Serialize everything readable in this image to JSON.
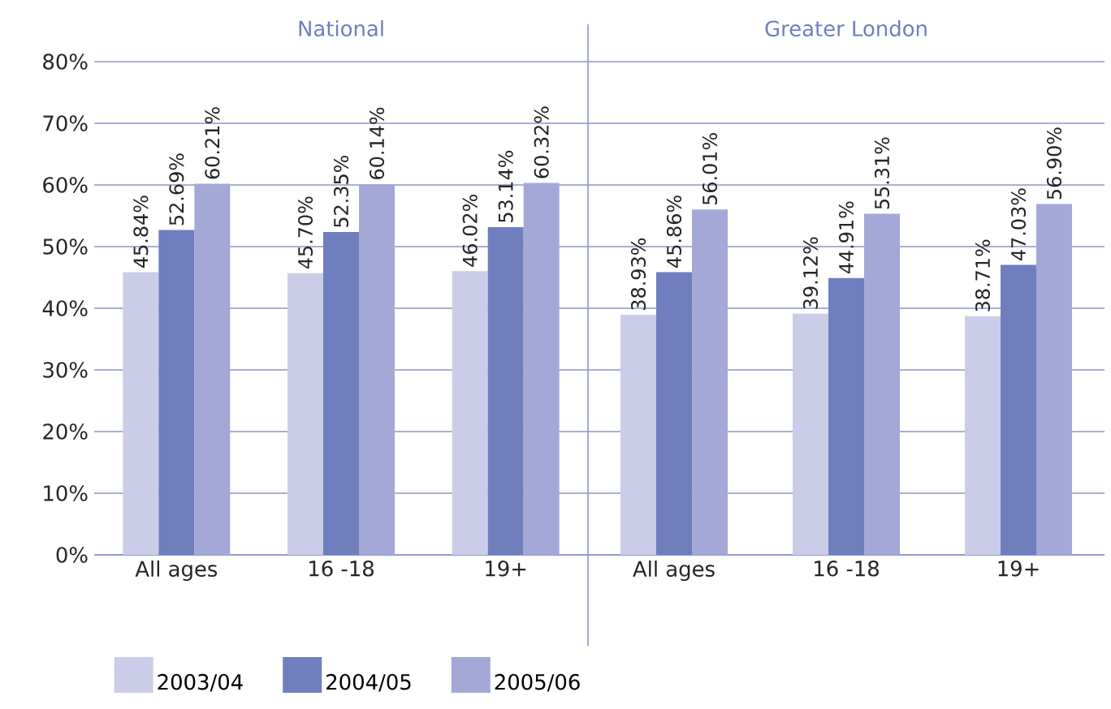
{
  "chart_data": [
    {
      "type": "bar",
      "title": "National",
      "categories": [
        "All ages",
        "16 -18",
        "19+"
      ],
      "ylim": [
        0,
        80
      ],
      "yticks": [
        {
          "value": 0,
          "label": "0%"
        },
        {
          "value": 10,
          "label": "10%"
        },
        {
          "value": 20,
          "label": "20%"
        },
        {
          "value": 30,
          "label": "30%"
        },
        {
          "value": 40,
          "label": "40%"
        },
        {
          "value": 50,
          "label": "50%"
        },
        {
          "value": 60,
          "label": "60%"
        },
        {
          "value": 70,
          "label": "70%"
        },
        {
          "value": 80,
          "label": "80%"
        }
      ],
      "grid": "y",
      "legend": "bottom",
      "series": [
        {
          "name": "2003/04",
          "color": "#cbcde8",
          "values": [
            45.84,
            45.7,
            46.02
          ],
          "value_labels": [
            "45.84%",
            "45.70%",
            "46.02%"
          ]
        },
        {
          "name": "2004/05",
          "color": "#6f7fbd",
          "values": [
            52.69,
            52.35,
            53.14
          ],
          "value_labels": [
            "52.69%",
            "52.35%",
            "53.14%"
          ]
        },
        {
          "name": "2005/06",
          "color": "#a4a8d6",
          "values": [
            60.21,
            60.14,
            60.32
          ],
          "value_labels": [
            "60.21%",
            "60.14%",
            "60.32%"
          ]
        }
      ]
    },
    {
      "type": "bar",
      "title": "Greater London",
      "categories": [
        "All ages",
        "16 -18",
        "19+"
      ],
      "ylim": [
        0,
        80
      ],
      "grid": "y",
      "tick_labels": "x",
      "yticks": [
        0,
        10,
        20,
        30,
        40,
        50,
        60,
        70,
        80
      ],
      "series": [
        {
          "color": "#cbcde8",
          "values": [
            38.93,
            39.12,
            38.71
          ],
          "value_labels": [
            "38.93%",
            "39.12%",
            "38.71%"
          ]
        },
        {
          "color": "#6f7fbd",
          "values": [
            45.86,
            44.91,
            47.03
          ],
          "value_labels": [
            "45.86%",
            "44.91%",
            "47.03%"
          ]
        },
        {
          "color": "#a4a8d6",
          "values": [
            56.01,
            55.31,
            56.9
          ],
          "value_labels": [
            "56.01%",
            "55.31%",
            "56.90%"
          ]
        }
      ]
    }
  ]
}
